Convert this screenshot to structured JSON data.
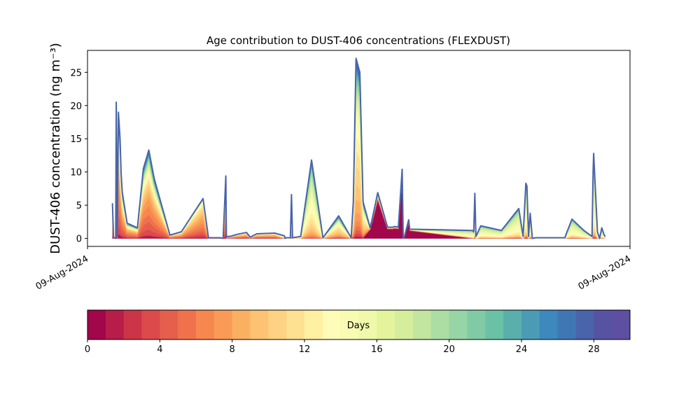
{
  "chart_data": {
    "type": "area",
    "title": "Age contribution to DUST-406 concentrations (FLEXDUST)",
    "ylabel": "DUST-406 concentration (ng m⁻³)",
    "xlabel": "",
    "x_tick_labels": [
      "09-Aug-2024",
      "09-Aug-2024"
    ],
    "x_range": [
      0,
      100
    ],
    "ylim": [
      -1.2,
      28.3
    ],
    "y_ticks": [
      0,
      5,
      10,
      15,
      20,
      25
    ],
    "grid": false,
    "x": [
      4.6,
      4.8,
      5.0,
      5.2,
      5.3,
      5.5,
      5.7,
      6.0,
      6.2,
      6.4,
      7.3,
      9.2,
      10.3,
      11.3,
      12.3,
      15.2,
      17.3,
      21.3,
      21.6,
      22.3,
      24.5,
      25.0,
      25.5,
      25.6,
      25.8,
      26.3,
      27.5,
      29.3,
      30.0,
      31.2,
      34.5,
      36.3,
      36.4,
      36.6,
      37.4,
      37.6,
      37.8,
      39.3,
      41.3,
      43.4,
      46.3,
      48.6,
      49.0,
      49.5,
      50.2,
      50.8,
      52.1,
      52.2,
      52.5,
      53.5,
      55.3,
      56.3,
      56.6,
      57.3,
      58.0,
      58.2,
      58.4,
      59.2,
      59.4,
      71.0,
      71.2,
      71.4,
      71.6,
      72.5,
      76.3,
      79.5,
      80.3,
      80.8,
      81.0,
      81.3,
      81.6,
      82.0,
      82.6,
      83.5,
      85.5,
      88.0,
      88.3,
      89.3,
      91.5,
      93.0,
      93.2,
      93.3,
      94.0,
      94.4,
      94.8,
      95.2,
      95.4
    ],
    "y": [
      5.3,
      0.1,
      0.1,
      0.0,
      20.5,
      0.3,
      19.0,
      15.0,
      9.8,
      7.0,
      2.3,
      1.6,
      10.5,
      13.3,
      9.0,
      0.5,
      1.0,
      6.0,
      4.2,
      0.1,
      0.1,
      0.0,
      9.4,
      0.2,
      0.3,
      0.3,
      0.6,
      0.9,
      0.2,
      0.7,
      0.8,
      0.4,
      0.0,
      0.1,
      0.1,
      6.6,
      0.1,
      0.3,
      11.8,
      0.1,
      3.4,
      0.1,
      5.5,
      27.1,
      25.0,
      5.5,
      1.6,
      2.0,
      3.0,
      6.9,
      1.7,
      1.7,
      1.8,
      1.7,
      10.4,
      0.1,
      0.2,
      2.8,
      1.4,
      1.2,
      1.0,
      6.8,
      0.3,
      1.9,
      1.2,
      4.5,
      0.3,
      8.3,
      7.9,
      0.3,
      3.8,
      0.0,
      0.1,
      0.1,
      0.1,
      0.1,
      0.8,
      2.9,
      1.2,
      0.3,
      10.0,
      12.8,
      1.0,
      0.0,
      1.6,
      0.6,
      0.3
    ],
    "age_profiles": [
      [
        0.5,
        5.0,
        1.0,
        11.0,
        15.0,
        14.0,
        18.0,
        15.0,
        12.0,
        10.0,
        8.0,
        7.0,
        6.0,
        6.0,
        5.0,
        5.0,
        4.0,
        4.0,
        4.0,
        3.0,
        3.0,
        3.0,
        2.0,
        2.0,
        2.0,
        2.0,
        2.0,
        1.0,
        1.0,
        1.0
      ],
      [
        0.5,
        2.0,
        4.0,
        6.0,
        8.0,
        10.0,
        11.0,
        12.0,
        11.0,
        10.0,
        8.0,
        7.0,
        5.0,
        4.0,
        3.0,
        2.0,
        2.0,
        1.0,
        1.0,
        1.0,
        1.0,
        0.0,
        0.0,
        0.0,
        0.0,
        0.0,
        0.0,
        0.0,
        0.0,
        0.0
      ],
      [
        0.0,
        0.0,
        0.0,
        0.5,
        1.0,
        1.0,
        2.0,
        3.0,
        4.0,
        5.0,
        6.0,
        8.0,
        10.0,
        10.0,
        11.0,
        10.0,
        9.0,
        8.0,
        6.0,
        5.0,
        4.0,
        3.0,
        2.0,
        2.0,
        1.0,
        1.0,
        1.0,
        1.0,
        1.0,
        1.0
      ],
      [
        1.0,
        1.0,
        2.0,
        3.0,
        4.0,
        5.0,
        7.0,
        11.0,
        16.0,
        19.0,
        24.0,
        20.0,
        18.0,
        15.0,
        13.0,
        12.0,
        9.0,
        7.0,
        6.0,
        6.0,
        5.0,
        5.0,
        4.0,
        4.0,
        3.0,
        3.0,
        3.0,
        2.0,
        2.0,
        2.0
      ],
      [
        80.0,
        5.0,
        2.0,
        1.0,
        1.0,
        1.0,
        0.5,
        0.5,
        0.5,
        0.5,
        0.5,
        0.5,
        0.5,
        0.5,
        0.5,
        0.5,
        0.5,
        0.5,
        0.5,
        0.5,
        0.5,
        0.5,
        0.5,
        0.5,
        0.5,
        0.5,
        0.5,
        0.5,
        0.5,
        0.5
      ],
      [
        0.0,
        0.0,
        0.5,
        1.0,
        1.0,
        1.0,
        1.0,
        1.0,
        2.0,
        3.0,
        4.0,
        5.0,
        7.0,
        10.0,
        13.0,
        15.0,
        14.0,
        11.0,
        8.0,
        5.0,
        3.0,
        2.0,
        2.0,
        1.0,
        1.0,
        0.5,
        0.5,
        0.5,
        0.5,
        0.5
      ]
    ],
    "colorbar": {
      "label": "Days",
      "range": [
        0,
        30
      ],
      "ticks": [
        0,
        4,
        8,
        12,
        16,
        20,
        24,
        28
      ],
      "colormap": "Spectral",
      "colors": [
        "#a2064b",
        "#b71d48",
        "#cc3447",
        "#dc4a4c",
        "#e65e4c",
        "#f0724d",
        "#f6874f",
        "#f99b56",
        "#fbaf61",
        "#fdc373",
        "#fed282",
        "#fee191",
        "#fff0a2",
        "#fffbb8",
        "#f8fcb3",
        "#f0f9aa",
        "#e3f49d",
        "#d4ee9c",
        "#c2e6a0",
        "#acdea4",
        "#96d5a5",
        "#80cba5",
        "#6bc1a5",
        "#5aaeac",
        "#4b9bb4",
        "#3d89bd",
        "#3f77b5",
        "#4a64ab",
        "#5753a3",
        "#5e4fa2"
      ]
    },
    "outline_color": "#4a64ab"
  }
}
